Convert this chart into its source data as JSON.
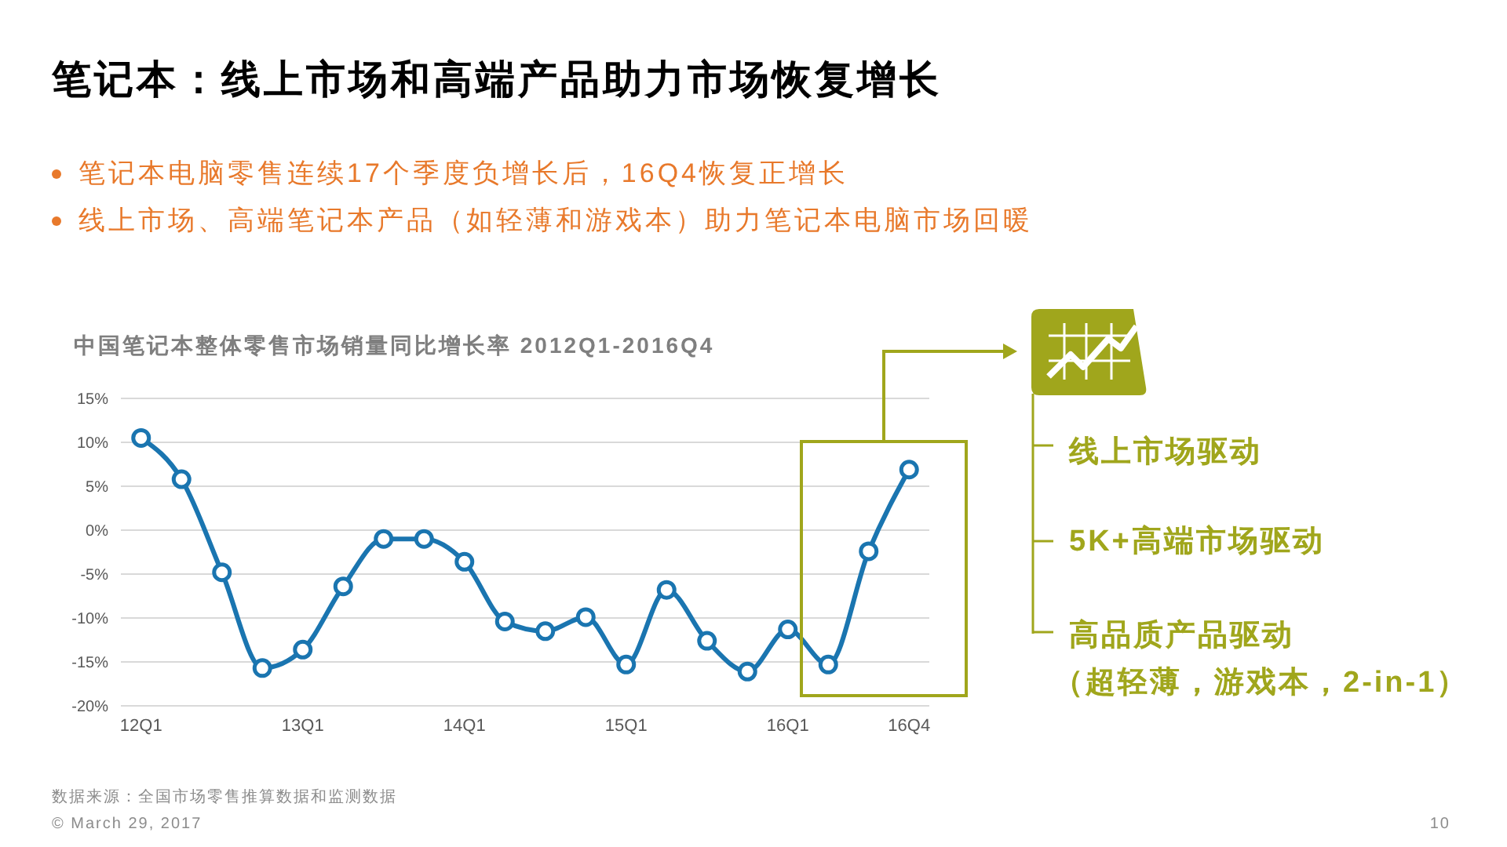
{
  "chart_data": {
    "type": "line",
    "title": "笔记本：线上市场和高端产品助力市场恢复增长",
    "subtitle": "中国笔记本整体零售市场销量同比增长率 2012Q1-2016Q4",
    "categories": [
      "12Q1",
      null,
      null,
      null,
      "13Q1",
      null,
      null,
      null,
      "14Q1",
      null,
      null,
      null,
      "15Q1",
      null,
      null,
      null,
      "16Q1",
      null,
      null,
      "16Q4"
    ],
    "values": [
      10.5,
      5.8,
      -4.8,
      -15.7,
      -13.6,
      -6.4,
      -1.0,
      -1.0,
      -3.6,
      -10.4,
      -11.5,
      -9.9,
      -15.3,
      -6.8,
      -12.6,
      -16.1,
      -11.3,
      -15.3,
      -2.4,
      6.9
    ],
    "color": "#1a75b0",
    "ylim": [
      -20,
      15
    ],
    "yticks": [
      {
        "value": -20,
        "label": "-20%"
      },
      {
        "value": -15,
        "label": "-15%"
      },
      {
        "value": -10,
        "label": "-10%"
      },
      {
        "value": -5,
        "label": "-5%"
      },
      {
        "value": 0,
        "label": "0%"
      },
      {
        "value": 5,
        "label": "5%"
      },
      {
        "value": 10,
        "label": "10%"
      },
      {
        "value": 15,
        "label": "15%"
      }
    ],
    "grid": "y",
    "marker": "circle",
    "line_style": "solid",
    "annotations": [
      "笔记本电脑零售连续17个季度负增长后，16Q4恢复正增长",
      "线上市场、高端笔记本产品（如轻薄和游戏本）助力笔记本电脑市场回暖",
      "线上市场驱动",
      "5K+高端市场驱动",
      "高品质产品驱动",
      "（超轻薄，游戏本，2-in-1）",
      "数据来源：全国市场零售推算数据和监测数据",
      "© March 29, 2017",
      "10"
    ]
  }
}
